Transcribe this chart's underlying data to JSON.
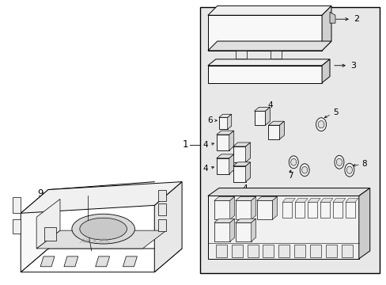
{
  "bg_color": "#ffffff",
  "line_color": "#000000",
  "panel_bg": "#e8e8e8",
  "part_bg": "#f5f5f5",
  "part_shade": "#d8d8d8",
  "part_dark": "#c0c0c0"
}
